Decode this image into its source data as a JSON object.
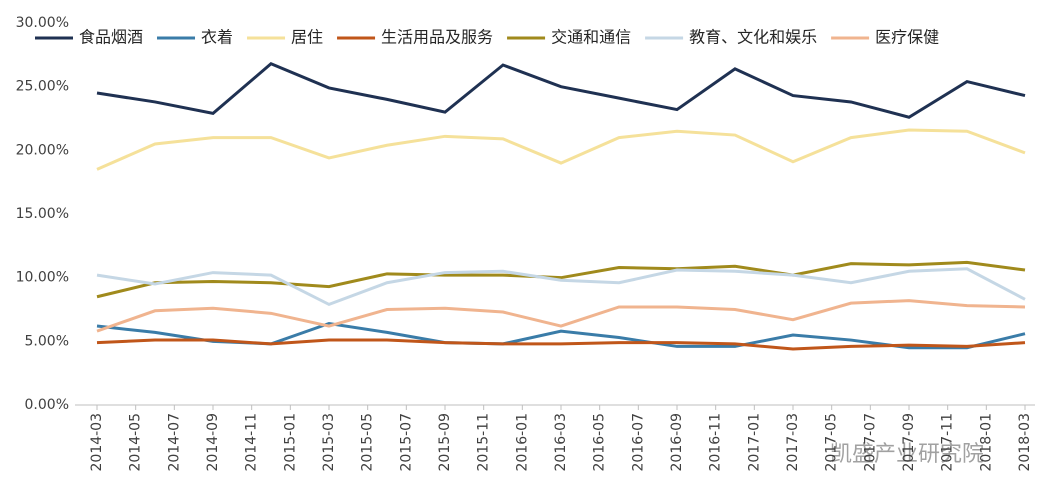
{
  "chart_data": {
    "type": "line",
    "x": [
      "2014-03",
      "2014-06",
      "2014-09",
      "2014-12",
      "2015-03",
      "2015-06",
      "2015-09",
      "2015-12",
      "2016-03",
      "2016-06",
      "2016-09",
      "2016-12",
      "2017-03",
      "2017-06",
      "2017-09",
      "2017-12",
      "2018-03"
    ],
    "xlim": [
      "2014-03",
      "2018-03"
    ],
    "xticks": [
      "2014-03",
      "2014-05",
      "2014-07",
      "2014-09",
      "2014-11",
      "2015-01",
      "2015-03",
      "2015-05",
      "2015-07",
      "2015-09",
      "2015-11",
      "2016-01",
      "2016-03",
      "2016-05",
      "2016-07",
      "2016-09",
      "2016-11",
      "2017-01",
      "2017-03",
      "2017-05",
      "2017-07",
      "2017-09",
      "2017-11",
      "2018-01",
      "2018-03"
    ],
    "ylim": [
      0,
      30
    ],
    "yticks": [
      {
        "value": 0,
        "label": "0.00%"
      },
      {
        "value": 5,
        "label": "5.00%"
      },
      {
        "value": 10,
        "label": "10.00%"
      },
      {
        "value": 15,
        "label": "15.00%"
      },
      {
        "value": 20,
        "label": "20.00%"
      },
      {
        "value": 25,
        "label": "25.00%"
      },
      {
        "value": 30,
        "label": "30.00%"
      }
    ],
    "legend": "top",
    "series": [
      {
        "name": "食品烟酒",
        "color": "#1f3152",
        "values": [
          24.5,
          23.8,
          22.9,
          26.8,
          24.9,
          24.0,
          23.0,
          26.7,
          25.0,
          24.1,
          23.2,
          26.4,
          24.3,
          23.8,
          22.6,
          25.4,
          24.3
        ]
      },
      {
        "name": "衣着",
        "color": "#3a7ca8",
        "values": [
          6.2,
          5.7,
          5.0,
          4.8,
          6.4,
          5.7,
          4.9,
          4.8,
          5.8,
          5.3,
          4.6,
          4.6,
          5.5,
          5.1,
          4.5,
          4.5,
          5.6
        ]
      },
      {
        "name": "居住",
        "color": "#f5e19a",
        "values": [
          18.5,
          20.5,
          21.0,
          21.0,
          19.4,
          20.4,
          21.1,
          20.9,
          19.0,
          21.0,
          21.5,
          21.2,
          19.1,
          21.0,
          21.6,
          21.5,
          19.8
        ]
      },
      {
        "name": "生活用品及服务",
        "color": "#c0561a",
        "values": [
          4.9,
          5.1,
          5.1,
          4.8,
          5.1,
          5.1,
          4.9,
          4.8,
          4.8,
          4.9,
          4.9,
          4.8,
          4.4,
          4.6,
          4.7,
          4.6,
          4.9
        ]
      },
      {
        "name": "交通和通信",
        "color": "#a08a1c",
        "values": [
          8.5,
          9.6,
          9.7,
          9.6,
          9.3,
          10.3,
          10.2,
          10.2,
          10.0,
          10.8,
          10.7,
          10.9,
          10.2,
          11.1,
          11.0,
          11.2,
          10.6
        ]
      },
      {
        "name": "教育、文化和娱乐",
        "color": "#c5d7e5",
        "values": [
          10.2,
          9.5,
          10.4,
          10.2,
          7.9,
          9.6,
          10.4,
          10.5,
          9.8,
          9.6,
          10.6,
          10.5,
          10.2,
          9.6,
          10.5,
          10.7,
          8.3
        ]
      },
      {
        "name": "医疗保健",
        "color": "#f0b48f",
        "values": [
          5.8,
          7.4,
          7.6,
          7.2,
          6.2,
          7.5,
          7.6,
          7.3,
          6.2,
          7.7,
          7.7,
          7.5,
          6.7,
          8.0,
          8.2,
          7.8,
          7.7
        ]
      }
    ],
    "watermark": "凯盛产业研究院"
  }
}
